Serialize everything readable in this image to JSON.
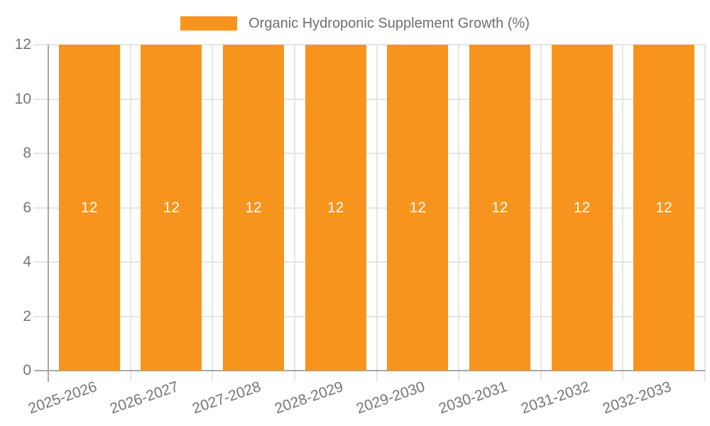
{
  "chart_data": {
    "type": "bar",
    "title": "Organic Hydroponic Supplement Growth (%)",
    "categories": [
      "2025-2026",
      "2026-2027",
      "2027-2028",
      "2028-2029",
      "2029-2030",
      "2030-2031",
      "2031-2032",
      "2032-2033"
    ],
    "series": [
      {
        "name": "Organic Hydroponic Supplement Growth (%)",
        "values": [
          12,
          12,
          12,
          12,
          12,
          12,
          12,
          12
        ]
      }
    ],
    "value_labels": [
      "12",
      "12",
      "12",
      "12",
      "12",
      "12",
      "12",
      "12"
    ],
    "xlabel": "",
    "ylabel": "",
    "ylim": [
      0,
      12
    ],
    "yticks": [
      0,
      2,
      4,
      6,
      8,
      10,
      12
    ],
    "grid": true,
    "legend_position": "top-center",
    "colors": {
      "bar": "#F7941E",
      "value_label": "#FFFFFF",
      "grid": "#E6E6E6",
      "axis": "#A8A8A8",
      "tick_text": "#757575",
      "legend_text": "#6E6E6E"
    }
  }
}
